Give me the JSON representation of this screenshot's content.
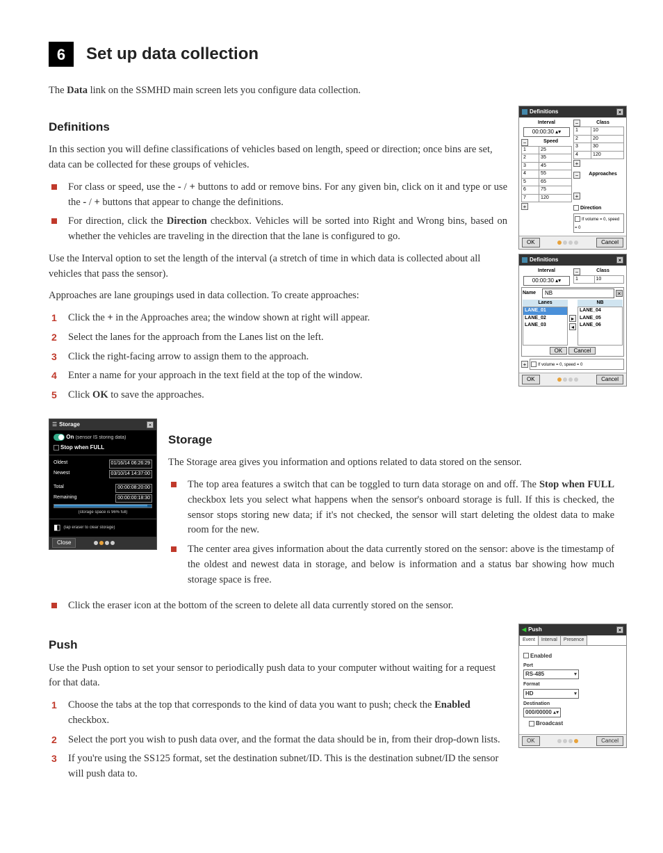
{
  "step": {
    "num": "6",
    "title": "Set up data collection"
  },
  "intro": "The Data link on the SSMHD main screen lets you configure data collection.",
  "defs": {
    "h": "Definitions",
    "p1": "In this section you will define classifications of vehicles based on length, speed or direction; once bins are set, data can be collected for these groups of vehicles.",
    "b1": "For class or speed, use the - / + buttons to add or remove bins. For any given bin, click on it and type or use the - / + buttons that appear to change the definitions.",
    "b2": "For direction, click the Direction checkbox. Vehicles will be sorted into Right and Wrong bins, based on whether the vehicles are traveling in the direction that the lane is configured to go.",
    "p2": "Use the Interval option to set the length of the interval (a stretch of time in which data is collected about all vehicles that pass the sensor).",
    "p3": "Approaches are lane groupings used in data collection. To create approaches:",
    "s1": "Click the + in the Approaches area; the window shown at right will appear.",
    "s2": "Select the lanes for the approach from the Lanes list on the left.",
    "s3": "Click the right-facing arrow to assign them to the approach.",
    "s4": "Enter a name for your approach in the text field at the top of the window.",
    "s5": "Click OK to save the approaches."
  },
  "defpanel": {
    "title": "Definitions",
    "interval_l": "Interval",
    "interval_v": "00:00:30",
    "class_l": "Class",
    "speed_l": "Speed",
    "approaches_l": "Approaches",
    "direction_l": "Direction",
    "volzero": "If volume = 0, speed = 0",
    "speed_rows": [
      [
        "1",
        "25"
      ],
      [
        "2",
        "35"
      ],
      [
        "3",
        "45"
      ],
      [
        "4",
        "55"
      ],
      [
        "5",
        "65"
      ],
      [
        "6",
        "75"
      ],
      [
        "7",
        "120"
      ]
    ],
    "class_rows": [
      [
        "1",
        "10"
      ],
      [
        "2",
        "20"
      ],
      [
        "3",
        "30"
      ],
      [
        "4",
        "120"
      ]
    ],
    "ok": "OK",
    "cancel": "Cancel"
  },
  "appr": {
    "title": "Definitions",
    "name_l": "Name",
    "name_v": "NB",
    "lanes_l": "Lanes",
    "nb": "NB",
    "left": [
      "LANE_01",
      "LANE_02",
      "LANE_03"
    ],
    "right": [
      "LANE_04",
      "LANE_05",
      "LANE_06"
    ],
    "ok": "OK",
    "cancel": "Cancel",
    "interval_l": "Interval",
    "interval_v": "00:00:30",
    "class_l": "Class",
    "class_rows": [
      [
        "1",
        "10"
      ]
    ],
    "volzero": "If volume = 0, speed = 0"
  },
  "storage": {
    "h": "Storage",
    "p1": "The Storage area gives you information and options related to data stored on the sensor.",
    "b1": "The top area features a switch that can be toggled to turn data storage on and off. The Stop when FULL checkbox lets you select what happens when the sensor's onboard storage is full. If this is checked, the sensor stops storing new data; if it's not checked, the sensor will start deleting the oldest data to make room for the new.",
    "b2": "The center area gives information about the data currently stored on the sensor: above is the timestamp of the oldest and newest data in storage, and below is information and a status bar showing how much storage space is free.",
    "b3": "Click the eraser icon at the bottom of the screen to delete all data currently stored on the sensor."
  },
  "storagefig": {
    "title": "Storage",
    "on": "On",
    "onnote": "(sensor IS storing data)",
    "stop": "Stop when FULL",
    "oldest_l": "Oldest",
    "oldest_v": "01/16/14 06:26:29",
    "newest_l": "Newest",
    "newest_v": "03/10/14 14:37:00",
    "total_l": "Total",
    "total_v": "00:00:08:20:00",
    "remain_l": "Remaining",
    "remain_v": "00:00:00:18:30",
    "pct": "(storage space is 96% full)",
    "erase": "(tap eraser to clear storage)",
    "close": "Close"
  },
  "push": {
    "h": "Push",
    "p1": "Use the Push option to set your sensor to periodically push data to your computer without waiting for a request for that data.",
    "s1": "Choose the tabs at the top that corresponds to the kind of data you want to push; check the Enabled checkbox.",
    "s2": "Select the port you wish to push data over, and the format the data should be in, from their drop-down lists.",
    "s3": "If you're using the SS125 format, set the destination subnet/ID. This is the destination subnet/ID the sensor will push data to."
  },
  "pushfig": {
    "title": "Push",
    "tabs": [
      "Event",
      "Interval",
      "Presence"
    ],
    "enabled": "Enabled",
    "port_l": "Port",
    "port_v": "RS-485",
    "format_l": "Format",
    "format_v": "HD",
    "dest_l": "Destination",
    "dest_v": "000/00000",
    "broadcast": "Broadcast",
    "ok": "OK",
    "cancel": "Cancel"
  }
}
